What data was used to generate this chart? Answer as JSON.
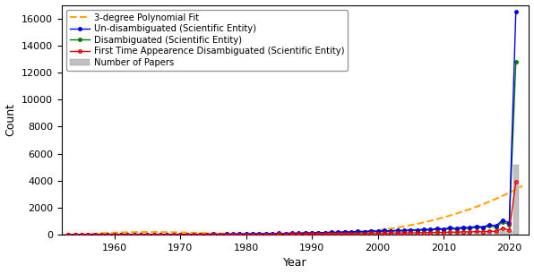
{
  "years": [
    1953,
    1954,
    1955,
    1956,
    1957,
    1958,
    1959,
    1960,
    1961,
    1962,
    1963,
    1964,
    1965,
    1966,
    1967,
    1968,
    1969,
    1970,
    1971,
    1972,
    1973,
    1974,
    1975,
    1976,
    1977,
    1978,
    1979,
    1980,
    1981,
    1982,
    1983,
    1984,
    1985,
    1986,
    1987,
    1988,
    1989,
    1990,
    1991,
    1992,
    1993,
    1994,
    1995,
    1996,
    1997,
    1998,
    1999,
    2000,
    2001,
    2002,
    2003,
    2004,
    2005,
    2006,
    2007,
    2008,
    2009,
    2010,
    2011,
    2012,
    2013,
    2014,
    2015,
    2016,
    2017,
    2018,
    2019,
    2020,
    2021
  ],
  "un_disambiguated": [
    5,
    3,
    5,
    4,
    6,
    5,
    7,
    6,
    9,
    8,
    12,
    10,
    15,
    13,
    19,
    17,
    24,
    22,
    30,
    27,
    37,
    33,
    45,
    40,
    55,
    48,
    67,
    59,
    80,
    72,
    95,
    85,
    112,
    100,
    130,
    116,
    152,
    136,
    175,
    157,
    202,
    181,
    231,
    207,
    263,
    236,
    298,
    267,
    310,
    285,
    340,
    310,
    375,
    340,
    420,
    380,
    470,
    430,
    520,
    470,
    570,
    510,
    640,
    570,
    750,
    660,
    1100,
    860,
    16500
  ],
  "disambiguated": [
    4,
    3,
    5,
    4,
    5,
    4,
    6,
    6,
    8,
    7,
    11,
    9,
    13,
    12,
    17,
    15,
    21,
    20,
    26,
    24,
    32,
    29,
    39,
    35,
    47,
    42,
    57,
    51,
    68,
    61,
    80,
    72,
    94,
    84,
    110,
    98,
    128,
    115,
    148,
    133,
    170,
    152,
    194,
    173,
    220,
    197,
    248,
    223,
    270,
    248,
    298,
    271,
    328,
    298,
    365,
    330,
    408,
    368,
    452,
    407,
    498,
    446,
    558,
    497,
    645,
    568,
    950,
    745,
    12800
  ],
  "first_time": [
    3,
    2,
    3,
    2,
    4,
    3,
    4,
    3,
    5,
    4,
    7,
    5,
    8,
    7,
    10,
    9,
    13,
    11,
    16,
    14,
    19,
    17,
    23,
    20,
    27,
    24,
    32,
    28,
    37,
    33,
    43,
    38,
    49,
    44,
    56,
    50,
    64,
    57,
    73,
    65,
    83,
    74,
    94,
    84,
    106,
    95,
    119,
    107,
    125,
    113,
    138,
    123,
    152,
    136,
    168,
    150,
    185,
    165,
    204,
    182,
    224,
    200,
    246,
    220,
    272,
    243,
    480,
    330,
    3900
  ],
  "papers": [
    2,
    1,
    2,
    1,
    3,
    2,
    3,
    2,
    4,
    3,
    5,
    4,
    6,
    5,
    8,
    7,
    10,
    8,
    12,
    10,
    15,
    13,
    18,
    15,
    21,
    18,
    26,
    22,
    30,
    26,
    36,
    30,
    42,
    36,
    49,
    42,
    56,
    49,
    64,
    56,
    73,
    64,
    83,
    72,
    94,
    82,
    106,
    92,
    100,
    89,
    110,
    98,
    121,
    107,
    133,
    118,
    147,
    130,
    160,
    143,
    175,
    156,
    192,
    170,
    210,
    186,
    300,
    260,
    5200
  ],
  "xlabel": "Year",
  "ylabel": "Count",
  "ylim": [
    0,
    17000
  ],
  "xlim": [
    1952,
    2023
  ],
  "yticks": [
    0,
    2000,
    4000,
    6000,
    8000,
    10000,
    12000,
    14000,
    16000
  ],
  "xticks": [
    1960,
    1970,
    1980,
    1990,
    2000,
    2010,
    2020
  ],
  "legend_labels": [
    "3-degree Polynomial Fit",
    "Un-disambiguated (Scientific Entity)",
    "Disambiguated (Scientific Entity)",
    "First Time Appearence Disambiguated (Scientific Entity)",
    "Number of Papers"
  ],
  "bar_color": "#c0c0c0",
  "bar_edgecolor": "#999999",
  "blue_color": "#0000ee",
  "green_color": "#007700",
  "red_color": "#ee0000",
  "orange_color": "#ffa500",
  "axis_fontsize": 9,
  "legend_fontsize": 7.2,
  "tick_fontsize": 8,
  "marker_size": 2.5,
  "line_width": 1.0
}
